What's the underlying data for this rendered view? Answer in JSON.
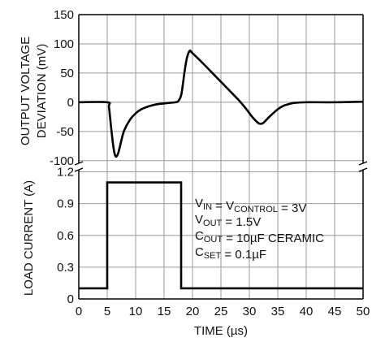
{
  "chart_data": {
    "type": "line",
    "xlabel": "TIME (µs)",
    "x_ticks": [
      0,
      5,
      10,
      15,
      20,
      25,
      30,
      35,
      40,
      45,
      50
    ],
    "xlim": [
      0,
      50
    ],
    "grid": true,
    "panels": [
      {
        "name": "voltage",
        "ylabel_lines": [
          "OUTPUT VOLTAGE",
          "DEVIATION (mV)"
        ],
        "ylim": [
          -110,
          150
        ],
        "y_ticks": [
          150,
          100,
          50,
          0,
          -50,
          -100
        ],
        "series": [
          {
            "x": [
              0,
              5,
              5.3,
              5.6,
              6.0,
              6.3,
              6.6,
              7.0,
              7.5,
              8.0,
              9.0,
              10.0,
              11.0,
              12.0,
              13.0,
              14.0,
              15.0,
              16.0,
              17.0,
              17.5,
              18.0,
              18.3,
              18.6,
              19.0,
              19.5,
              20.0,
              22.0,
              24.0,
              26.0,
              28.0,
              29.5,
              30.5,
              31.5,
              32.0,
              32.5,
              33.5,
              35.0,
              36.0,
              37.0,
              38.0,
              40.0,
              45.0,
              50.0
            ],
            "values": [
              0,
              0,
              -8,
              -35,
              -70,
              -88,
              -93,
              -85,
              -65,
              -48,
              -30,
              -19,
              -12,
              -8,
              -5,
              -3,
              -2,
              -1,
              0,
              2,
              12,
              30,
              52,
              75,
              88,
              84,
              65,
              45,
              25,
              5,
              -12,
              -25,
              -35,
              -37,
              -35,
              -25,
              -12,
              -6,
              -3,
              -1,
              0,
              0,
              1
            ]
          }
        ]
      },
      {
        "name": "current",
        "ylabel": "LOAD CURRENT (A)",
        "ylim": [
          0,
          1.2
        ],
        "y_ticks": [
          1.2,
          0.9,
          0.6,
          0.3,
          0
        ],
        "series": [
          {
            "x": [
              0,
              5,
              5,
              18,
              18,
              50
            ],
            "values": [
              0.1,
              0.1,
              1.1,
              1.1,
              0.1,
              0.1
            ]
          }
        ]
      }
    ],
    "annotation": [
      {
        "main": "V",
        "sub": "IN",
        "rest1": " = V",
        "sub2": "CONTROL",
        "rest2": " = 3V"
      },
      {
        "main": "V",
        "sub": "OUT",
        "rest1": " = 1.5V"
      },
      {
        "main": "C",
        "sub": "OUT",
        "rest1": " = 10µF CERAMIC"
      },
      {
        "main": "C",
        "sub": "SET",
        "rest1": " = 0.1µF"
      }
    ]
  }
}
